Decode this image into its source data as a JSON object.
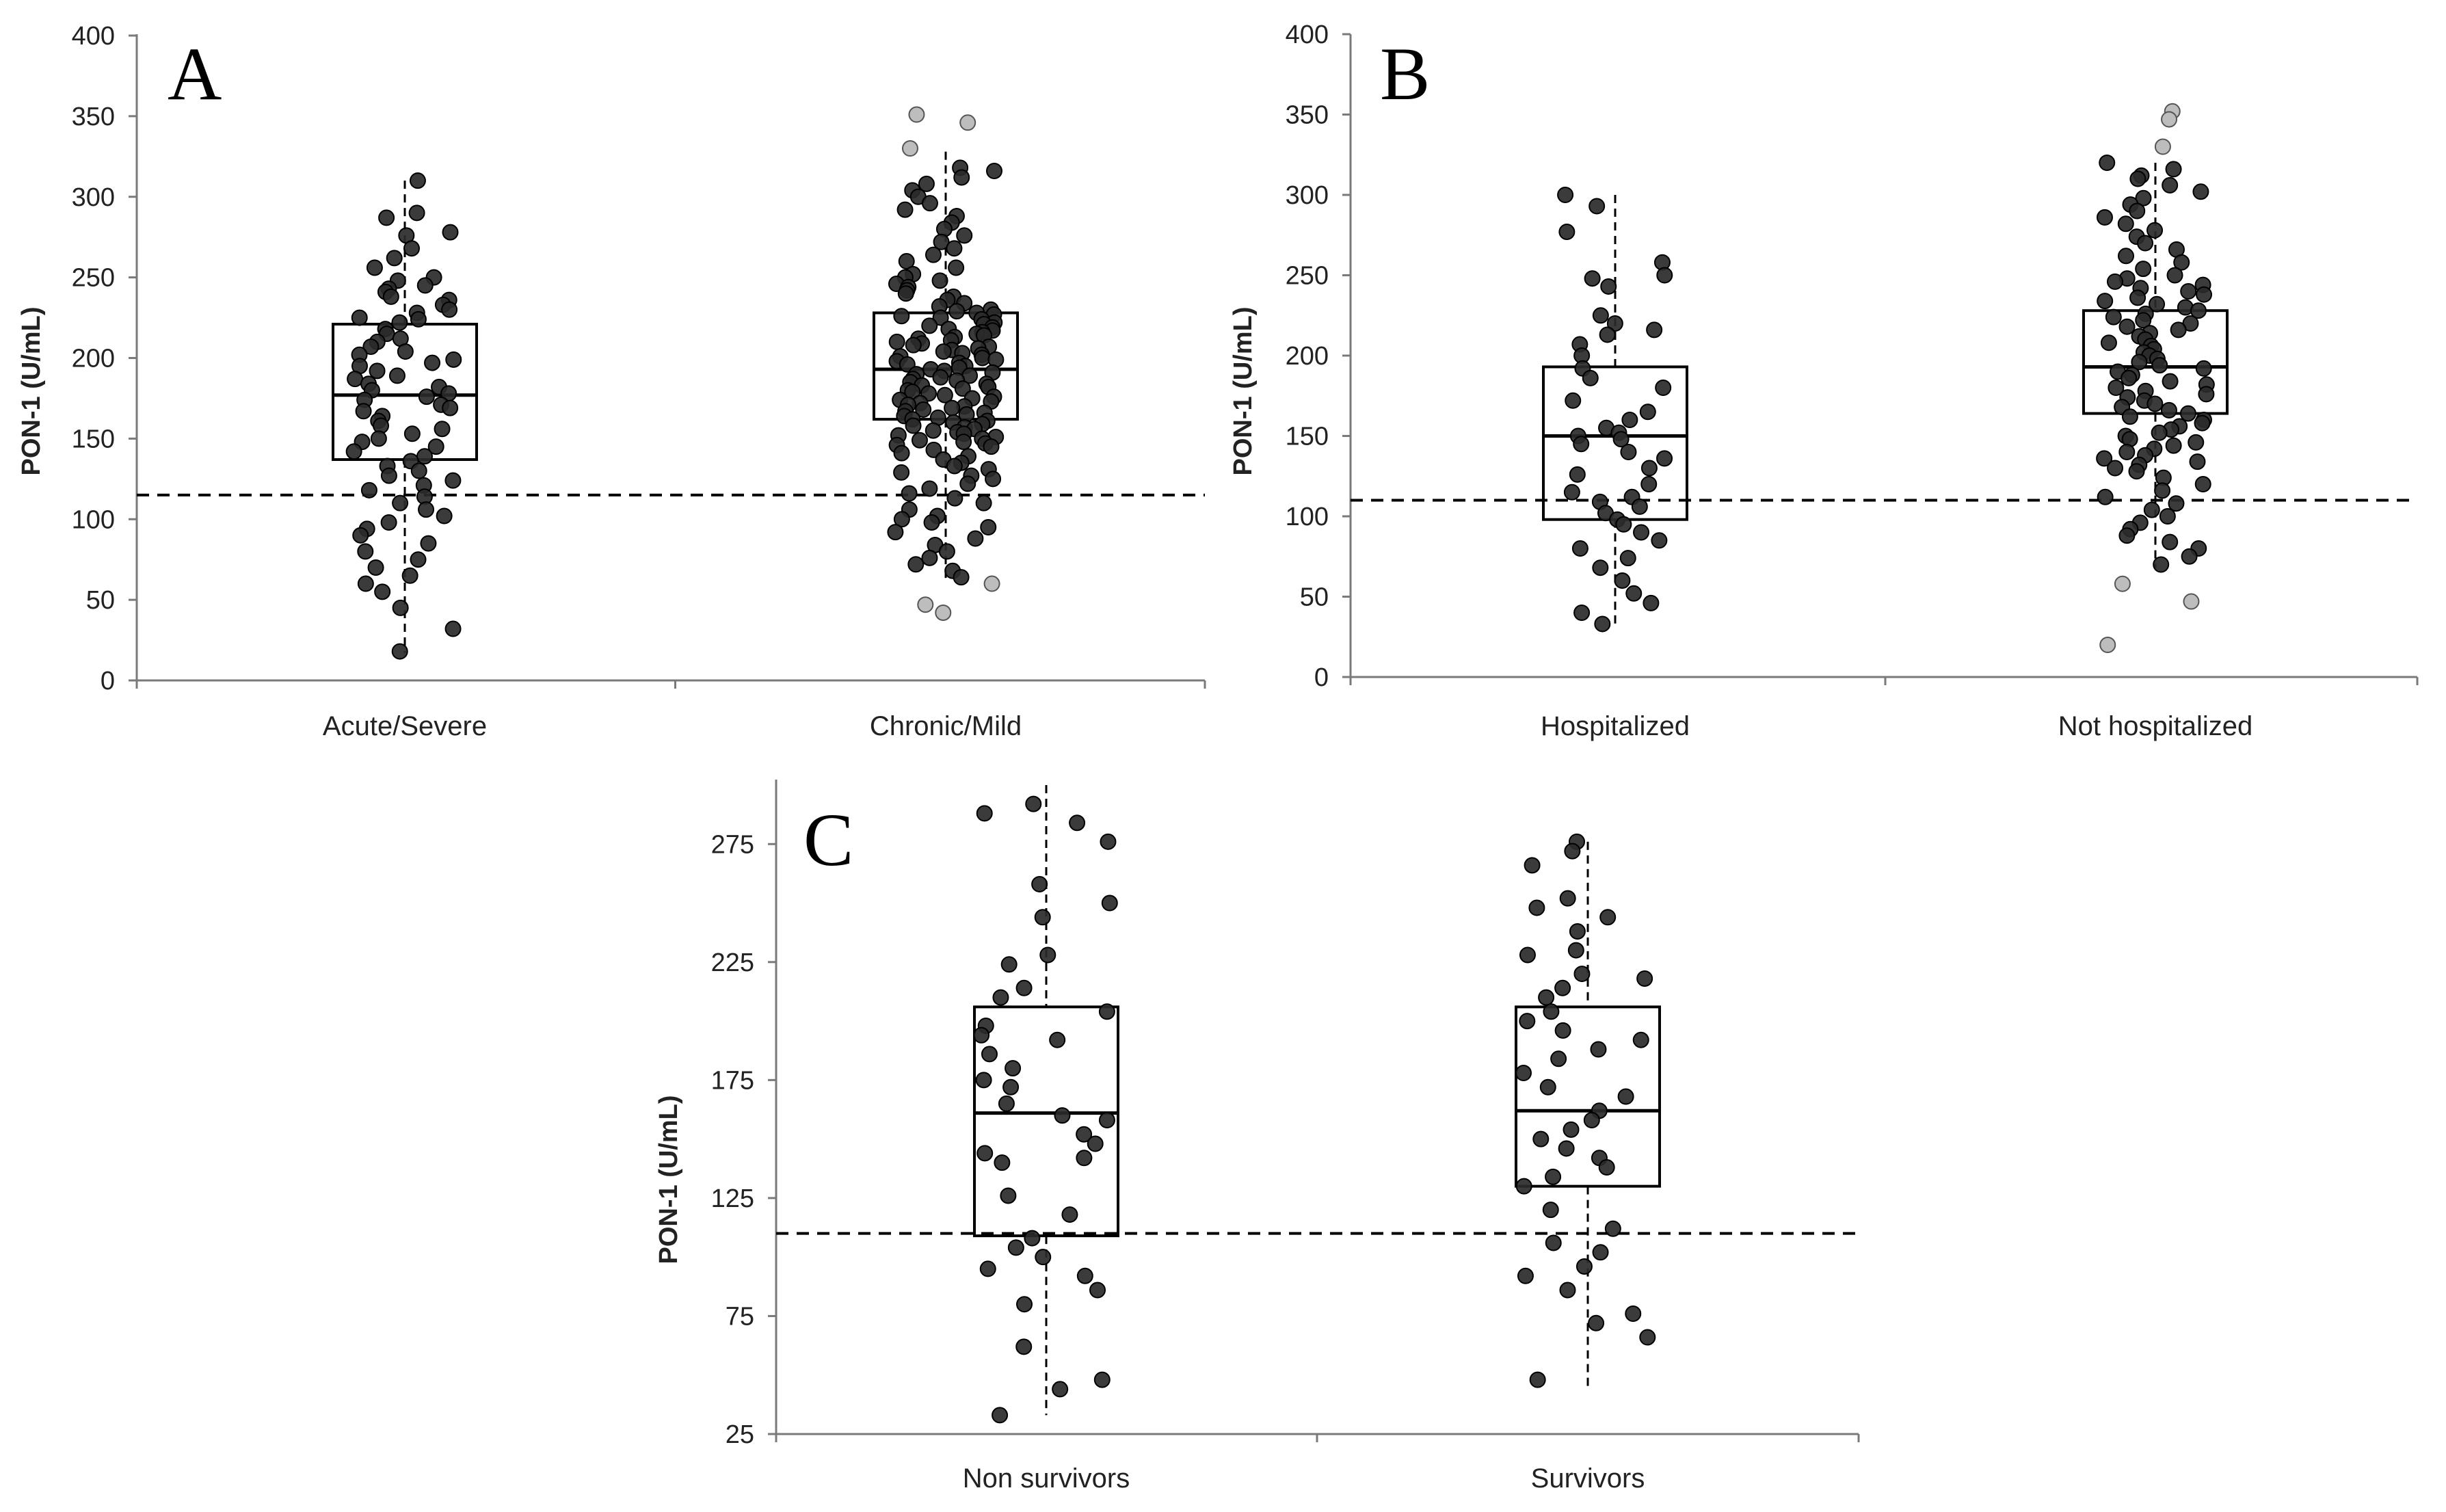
{
  "colors": {
    "point": "#2a2a2a",
    "point_edge": "#000000",
    "outlier": "#bdbdbd",
    "outlier_edge": "#555555"
  },
  "chart_data": [
    {
      "panel": "A",
      "type": "box-strip",
      "ylabel": "PON-1 (U/mL)",
      "ylim": [
        0,
        400
      ],
      "yticks": [
        0,
        50,
        100,
        150,
        200,
        250,
        300,
        350,
        400
      ],
      "reference_line": 115,
      "categories": [
        "Acute/Severe",
        "Chronic/Mild"
      ],
      "boxes": [
        {
          "q1": 137,
          "median": 177,
          "q3": 221,
          "whisker_low": 17,
          "whisker_high": 310
        },
        {
          "q1": 162,
          "median": 193,
          "q3": 228,
          "whisker_low": 62,
          "whisker_high": 328
        }
      ],
      "points": [
        [
          310,
          290,
          287,
          278,
          276,
          268,
          262,
          256,
          250,
          248,
          245,
          243,
          241,
          238,
          236,
          233,
          230,
          228,
          225,
          224,
          222,
          218,
          215,
          212,
          210,
          207,
          204,
          202,
          199,
          197,
          195,
          192,
          189,
          187,
          184,
          182,
          180,
          178,
          176,
          174,
          171,
          169,
          167,
          164,
          161,
          158,
          156,
          153,
          150,
          148,
          145,
          142,
          139,
          136,
          133,
          130,
          127,
          124,
          121,
          118,
          114,
          110,
          106,
          102,
          98,
          94,
          90,
          85,
          80,
          75,
          70,
          65,
          60,
          55,
          45,
          32,
          18
        ],
        [
          318,
          316,
          312,
          308,
          304,
          300,
          296,
          292,
          288,
          284,
          280,
          276,
          272,
          268,
          264,
          260,
          256,
          252,
          250,
          248,
          246,
          244,
          242,
          240,
          238,
          236,
          234,
          232,
          230,
          229,
          228,
          227,
          226,
          225,
          224,
          222,
          221,
          220,
          219,
          218,
          217,
          216,
          215,
          214,
          213,
          212,
          211,
          210,
          209,
          208,
          207,
          206,
          205,
          204,
          203,
          202,
          201,
          200,
          199,
          198,
          197,
          196,
          195,
          194,
          193,
          192,
          191,
          190,
          189,
          188,
          187,
          186,
          185,
          184,
          183,
          182,
          181,
          180,
          179,
          178,
          177,
          176,
          175,
          174,
          173,
          172,
          171,
          170,
          169,
          168,
          167,
          166,
          165,
          164,
          163,
          162,
          161,
          160,
          159,
          158,
          157,
          156,
          155,
          154,
          153,
          152,
          151,
          150,
          149,
          148,
          147,
          146,
          145,
          143,
          141,
          139,
          137,
          135,
          133,
          131,
          129,
          127,
          125,
          122,
          119,
          116,
          113,
          110,
          106,
          102,
          100,
          98,
          95,
          92,
          88,
          84,
          80,
          76,
          72,
          68,
          64
        ]
      ],
      "outliers": [
        [],
        [
          351,
          346,
          330,
          47,
          42,
          60
        ]
      ]
    },
    {
      "panel": "B",
      "type": "box-strip",
      "ylabel": "PON-1 (U/mL)",
      "ylim": [
        0,
        400
      ],
      "yticks": [
        0,
        50,
        100,
        150,
        200,
        250,
        300,
        350,
        400
      ],
      "reference_line": 110,
      "categories": [
        "Hospitalized",
        "Not hospitalized"
      ],
      "boxes": [
        {
          "q1": 98,
          "median": 150,
          "q3": 193,
          "whisker_low": 33,
          "whisker_high": 300
        },
        {
          "q1": 164,
          "median": 193,
          "q3": 228,
          "whisker_low": 68,
          "whisker_high": 320
        }
      ],
      "points": [
        [
          300,
          293,
          277,
          258,
          250,
          248,
          243,
          225,
          220,
          216,
          213,
          207,
          200,
          192,
          186,
          180,
          172,
          165,
          160,
          155,
          152,
          150,
          148,
          145,
          140,
          136,
          130,
          126,
          120,
          115,
          112,
          109,
          106,
          102,
          98,
          95,
          90,
          85,
          80,
          74,
          68,
          60,
          52,
          46,
          40,
          33
        ],
        [
          320,
          316,
          312,
          310,
          306,
          302,
          298,
          294,
          290,
          286,
          282,
          278,
          274,
          270,
          266,
          262,
          258,
          254,
          250,
          248,
          246,
          244,
          242,
          240,
          238,
          236,
          234,
          232,
          230,
          228,
          226,
          224,
          222,
          220,
          218,
          216,
          214,
          212,
          210,
          208,
          206,
          204,
          202,
          200,
          198,
          196,
          194,
          192,
          190,
          188,
          186,
          184,
          182,
          180,
          178,
          176,
          174,
          172,
          170,
          168,
          166,
          164,
          162,
          160,
          158,
          156,
          154,
          152,
          150,
          148,
          146,
          144,
          142,
          140,
          138,
          136,
          134,
          132,
          130,
          128,
          124,
          120,
          116,
          112,
          108,
          104,
          100,
          96,
          92,
          88,
          84,
          80,
          75,
          70
        ]
      ],
      "outliers": [
        [],
        [
          352,
          347,
          330,
          58,
          47,
          20
        ]
      ]
    },
    {
      "panel": "C",
      "type": "box-strip",
      "ylabel": "PON-1 (U/mL)",
      "ylim": [
        25,
        300
      ],
      "yticks": [
        25,
        75,
        125,
        175,
        225,
        275
      ],
      "reference_line": 110,
      "categories": [
        "Non survivors",
        "Survivors"
      ],
      "boxes": [
        {
          "q1": 109,
          "median": 161,
          "q3": 206,
          "whisker_low": 33,
          "whisker_high": 300
        },
        {
          "q1": 130,
          "median": 162,
          "q3": 206,
          "whisker_low": 45,
          "whisker_high": 276
        }
      ],
      "points": [
        [
          292,
          288,
          284,
          276,
          258,
          250,
          244,
          228,
          224,
          214,
          210,
          204,
          198,
          194,
          192,
          186,
          180,
          175,
          172,
          165,
          160,
          158,
          152,
          148,
          144,
          142,
          140,
          126,
          118,
          108,
          104,
          100,
          95,
          92,
          86,
          80,
          62,
          48,
          44,
          33
        ],
        [
          276,
          272,
          266,
          252,
          248,
          244,
          238,
          230,
          228,
          220,
          218,
          214,
          210,
          204,
          200,
          196,
          192,
          188,
          184,
          178,
          172,
          168,
          162,
          158,
          154,
          150,
          146,
          142,
          138,
          134,
          130,
          120,
          112,
          106,
          102,
          96,
          92,
          86,
          76,
          72,
          66,
          48
        ]
      ],
      "outliers": [
        [],
        []
      ]
    }
  ]
}
